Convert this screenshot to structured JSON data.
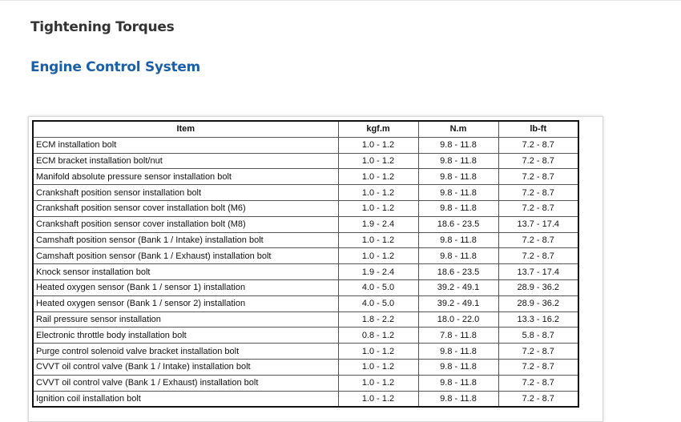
{
  "page_title": "Tightening Torques",
  "section_title": "Engine Control System",
  "table": {
    "headers": [
      "Item",
      "kgf.m",
      "N.m",
      "lb-ft"
    ],
    "rows": [
      [
        "ECM installation bolt",
        "1.0 - 1.2",
        "9.8 - 11.8",
        "7.2 - 8.7"
      ],
      [
        "ECM bracket installation bolt/nut",
        "1.0 - 1.2",
        "9.8 - 11.8",
        "7.2 - 8.7"
      ],
      [
        "Manifold absolute pressure sensor installation bolt",
        "1.0 - 1.2",
        "9.8 - 11.8",
        "7.2 - 8.7"
      ],
      [
        "Crankshaft position sensor installation bolt",
        "1.0 - 1.2",
        "9.8 - 11.8",
        "7.2 - 8.7"
      ],
      [
        "Crankshaft position sensor cover installation bolt (M6)",
        "1.0 - 1.2",
        "9.8 - 11.8",
        "7.2 - 8.7"
      ],
      [
        "Crankshaft position sensor cover installation bolt (M8)",
        "1.9 - 2.4",
        "18.6 - 23.5",
        "13.7 - 17.4"
      ],
      [
        "Camshaft position sensor (Bank 1 / Intake) installation bolt",
        "1.0 - 1.2",
        "9.8 - 11.8",
        "7.2 - 8.7"
      ],
      [
        "Camshaft position sensor (Bank 1 / Exhaust) installation bolt",
        "1.0 - 1.2",
        "9.8 - 11.8",
        "7.2 - 8.7"
      ],
      [
        "Knock sensor installation bolt",
        "1.9 - 2.4",
        "18.6 - 23.5",
        "13.7 - 17.4"
      ],
      [
        "Heated oxygen sensor (Bank 1 / sensor 1) installation",
        "4.0 - 5.0",
        "39.2 - 49.1",
        "28.9 - 36.2"
      ],
      [
        "Heated oxygen sensor (Bank 1 / sensor 2) installation",
        "4.0 - 5.0",
        "39.2 - 49.1",
        "28.9 - 36.2"
      ],
      [
        "Rail pressure sensor installation",
        "1.8 - 2.2",
        "18.0 - 22.0",
        "13.3 - 16.2"
      ],
      [
        "Electronic throttle body installation bolt",
        "0.8 - 1.2",
        "7.8 - 11.8",
        "5.8 - 8.7"
      ],
      [
        "Purge control solenoid valve bracket installation bolt",
        "1.0 - 1.2",
        "9.8 - 11.8",
        "7.2 - 8.7"
      ],
      [
        "CVVT oil control valve (Bank 1 / Intake) installation bolt",
        "1.0 - 1.2",
        "9.8 - 11.8",
        "7.2 - 8.7"
      ],
      [
        "CVVT oil control valve (Bank 1 / Exhaust) installation bolt",
        "1.0 - 1.2",
        "9.8 - 11.8",
        "7.2 - 8.7"
      ],
      [
        "Ignition coil installation bolt",
        "1.0 - 1.2",
        "9.8 - 11.8",
        "7.2 - 8.7"
      ]
    ]
  }
}
